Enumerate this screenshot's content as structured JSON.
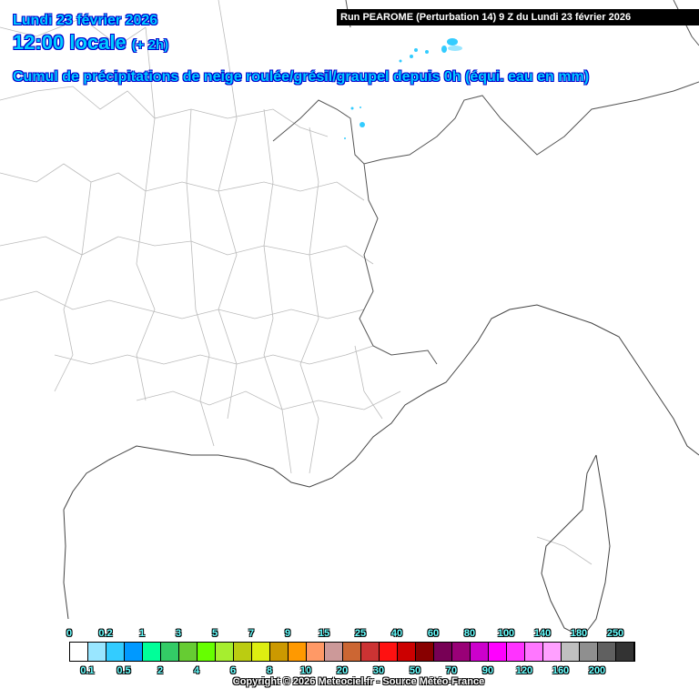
{
  "header": {
    "date": "Lundi 23 février 2026",
    "time": "12:00 locale",
    "offset": "(+ 2h)",
    "subtitle": "Cumul de précipitations de neige roulée/grésil/graupel depuis 0h (équi. eau en mm)",
    "run": "Run PEAROME (Perturbation 14) 9 Z du Lundi 23 février 2026"
  },
  "legend": {
    "top_labels": [
      "0",
      "0.2",
      "1",
      "3",
      "5",
      "7",
      "9",
      "15",
      "25",
      "40",
      "60",
      "80",
      "100",
      "140",
      "180",
      "250"
    ],
    "bottom_labels": [
      "0.1",
      "0.5",
      "2",
      "4",
      "6",
      "8",
      "10",
      "20",
      "30",
      "50",
      "70",
      "90",
      "120",
      "160",
      "200"
    ],
    "colors": [
      "#ffffff",
      "#99e6ff",
      "#33ccff",
      "#0099ff",
      "#00ff99",
      "#33cc66",
      "#66cc33",
      "#66ff00",
      "#a6ee2f",
      "#bbcc11",
      "#ddee11",
      "#cc9900",
      "#ff9900",
      "#ff9966",
      "#cc9999",
      "#cc6633",
      "#cc3333",
      "#ff1111",
      "#cc0000",
      "#880000",
      "#770055",
      "#990077",
      "#cc00cc",
      "#ff00ff",
      "#ff33ff",
      "#ff77ff",
      "#ffa0ff",
      "#c0c0c0",
      "#8f8f8f",
      "#606060",
      "#333333"
    ]
  },
  "copyright": "Copyright © 2026 Meteociel.fr - Source Météo-France"
}
